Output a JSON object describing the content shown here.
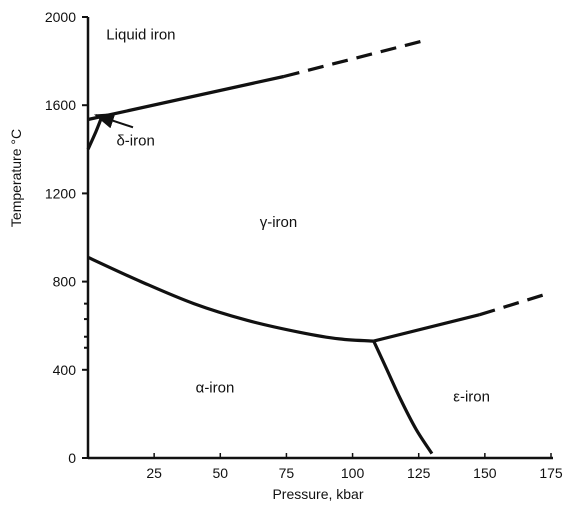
{
  "chart_data": {
    "type": "line",
    "title": "",
    "xlabel": "Pressure, kbar",
    "ylabel": "Temperature °C",
    "xlim": [
      0,
      175
    ],
    "ylim": [
      0,
      2000
    ],
    "x_ticks": [
      25,
      50,
      75,
      100,
      125,
      150,
      175
    ],
    "y_ticks": [
      0,
      400,
      800,
      1200,
      1600,
      2000
    ],
    "grid": false,
    "regions": [
      {
        "label": "Liquid iron",
        "x": 20,
        "y": 1920
      },
      {
        "label": "δ-iron",
        "x": 18,
        "y": 1440
      },
      {
        "label": "γ-iron",
        "x": 72,
        "y": 1070
      },
      {
        "label": "α-iron",
        "x": 48,
        "y": 320
      },
      {
        "label": "ε-iron",
        "x": 145,
        "y": 280
      }
    ],
    "boundaries": [
      {
        "name": "liquid / solid (measured)",
        "style": "solid",
        "points": [
          [
            0,
            1535
          ],
          [
            74,
            1730
          ]
        ]
      },
      {
        "name": "liquid / solid (extrapolated)",
        "style": "dashed",
        "points": [
          [
            74,
            1730
          ],
          [
            126,
            1890
          ]
        ]
      },
      {
        "name": "α / γ",
        "style": "solid",
        "points": [
          [
            0,
            910
          ],
          [
            20,
            800
          ],
          [
            40,
            700
          ],
          [
            60,
            625
          ],
          [
            80,
            570
          ],
          [
            95,
            540
          ],
          [
            108,
            530
          ]
        ]
      },
      {
        "name": "γ / ε (measured)",
        "style": "solid",
        "points": [
          [
            108,
            530
          ],
          [
            148,
            650
          ]
        ]
      },
      {
        "name": "γ / ε (extrapolated)",
        "style": "dashed",
        "points": [
          [
            148,
            650
          ],
          [
            175,
            750
          ]
        ]
      },
      {
        "name": "α / ε",
        "style": "solid",
        "points": [
          [
            108,
            530
          ],
          [
            113,
            400
          ],
          [
            118,
            270
          ],
          [
            124,
            130
          ],
          [
            130,
            20
          ]
        ]
      },
      {
        "name": "δ / γ",
        "style": "solid",
        "points": [
          [
            0,
            1400
          ],
          [
            3,
            1480
          ],
          [
            5,
            1540
          ]
        ]
      },
      {
        "name": "δ-iron arrow",
        "style": "arrow",
        "points": [
          [
            17,
            1500
          ],
          [
            3,
            1555
          ]
        ]
      }
    ],
    "y_axis_minor_marks": [
      700,
      630,
      550,
      500
    ]
  }
}
